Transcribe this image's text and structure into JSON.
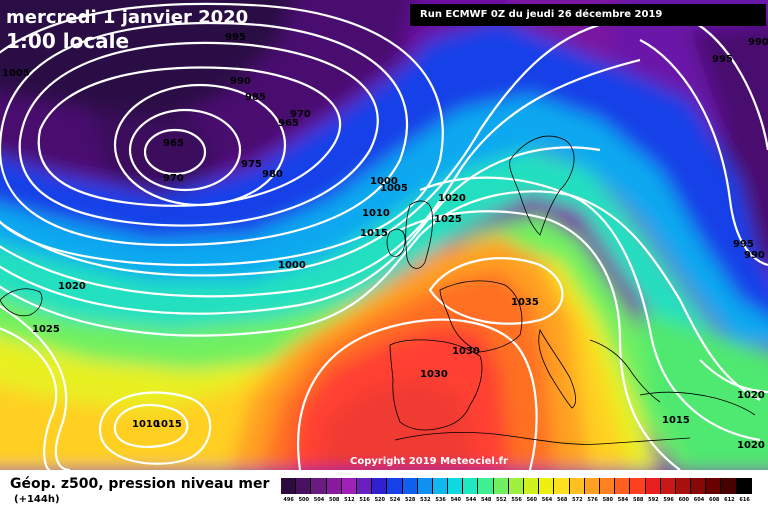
{
  "header": {
    "date": "mercredi 1 janvier 2020",
    "time": "1:00 locale",
    "run": "Run ECMWF 0Z du jeudi 26 décembre 2019"
  },
  "map": {
    "copyright": "Copyright 2019 Meteociel.fr",
    "pressure_labels": [
      "995",
      "990",
      "1005",
      "990",
      "985",
      "970",
      "965",
      "965",
      "970",
      "975",
      "980",
      "1000",
      "1005",
      "1020",
      "1010",
      "1025",
      "1015",
      "1000",
      "1020",
      "1025",
      "1035",
      "1030",
      "1030",
      "1010",
      "1015",
      "995",
      "995",
      "990",
      "1020",
      "1015",
      "1020"
    ]
  },
  "footer": {
    "parameter": "Géop. z500, pression niveau mer",
    "lead_time": "(+144h)"
  },
  "legend": {
    "ticks": [
      "496",
      "500",
      "504",
      "508",
      "512",
      "516",
      "520",
      "524",
      "528",
      "532",
      "536",
      "540",
      "544",
      "548",
      "552",
      "556",
      "560",
      "564",
      "568",
      "572",
      "576",
      "580",
      "584",
      "588",
      "592",
      "596",
      "600",
      "604",
      "608",
      "612",
      "616"
    ],
    "colors": [
      "#2c0a3c",
      "#4a1060",
      "#6a1a80",
      "#8a1aa0",
      "#a020b8",
      "#6a20c0",
      "#3020d0",
      "#1840e8",
      "#1060f0",
      "#1090f0",
      "#10b8f0",
      "#10d8e0",
      "#20e8c0",
      "#40f090",
      "#70f060",
      "#a0f040",
      "#d0f020",
      "#f0f010",
      "#ffe020",
      "#ffc020",
      "#ffa020",
      "#ff8020",
      "#ff6020",
      "#ff4020",
      "#e82020",
      "#c81818",
      "#a81010",
      "#880808",
      "#680000",
      "#480000",
      "#000000"
    ]
  }
}
